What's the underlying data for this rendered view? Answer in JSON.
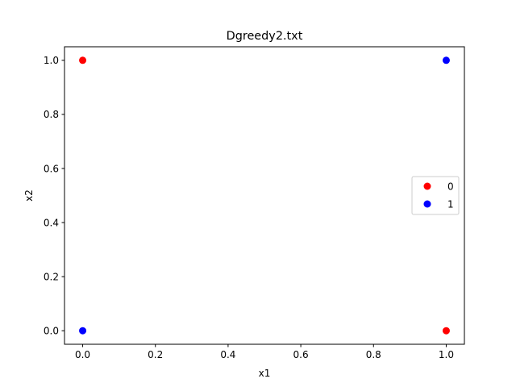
{
  "chart_data": {
    "type": "scatter",
    "title": "Dgreedy2.txt",
    "xlabel": "x1",
    "ylabel": "x2",
    "xlim": [
      -0.05,
      1.05
    ],
    "ylim": [
      -0.05,
      1.05
    ],
    "xticks": [
      "0.0",
      "0.2",
      "0.4",
      "0.6",
      "0.8",
      "1.0"
    ],
    "yticks": [
      "0.0",
      "0.2",
      "0.4",
      "0.6",
      "0.8",
      "1.0"
    ],
    "grid": false,
    "legend_position": "center-right",
    "series": [
      {
        "name": "0",
        "color": "#ff0000",
        "points": [
          [
            0,
            1
          ],
          [
            1,
            0
          ]
        ]
      },
      {
        "name": "1",
        "color": "#0000ff",
        "points": [
          [
            0,
            0
          ],
          [
            1,
            1
          ]
        ]
      }
    ]
  }
}
